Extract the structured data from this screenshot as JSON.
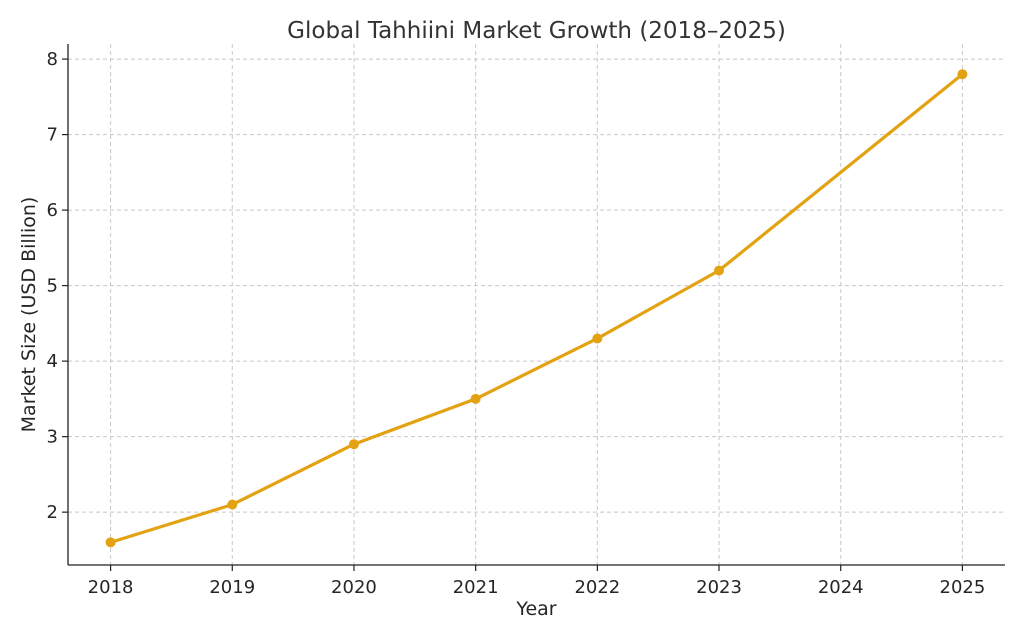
{
  "chart_data": {
    "type": "line",
    "title": "Global Tahhiini Market Growth (2018–2025)",
    "xlabel": "Year",
    "ylabel": "Market Size (USD Billion)",
    "x": [
      2018,
      2019,
      2020,
      2021,
      2022,
      2023,
      2024,
      2025
    ],
    "x_ticks": [
      "2018",
      "2019",
      "2020",
      "2021",
      "2022",
      "2023",
      "2024",
      "2025"
    ],
    "series": [
      {
        "values": [
          1.6,
          2.1,
          2.9,
          3.5,
          4.3,
          5.2,
          6.5,
          7.8
        ],
        "markers_at": [
          2018,
          2019,
          2020,
          2021,
          2022,
          2023,
          2025
        ],
        "color": "#e3a212"
      }
    ],
    "y_ticks": [
      "2",
      "3",
      "4",
      "5",
      "6",
      "7",
      "8"
    ],
    "y_tick_values": [
      2,
      3,
      4,
      5,
      6,
      7,
      8
    ],
    "xlim": [
      2017.65,
      2025.35
    ],
    "ylim": [
      1.3,
      8.2
    ],
    "grid": true,
    "legend": "none"
  }
}
